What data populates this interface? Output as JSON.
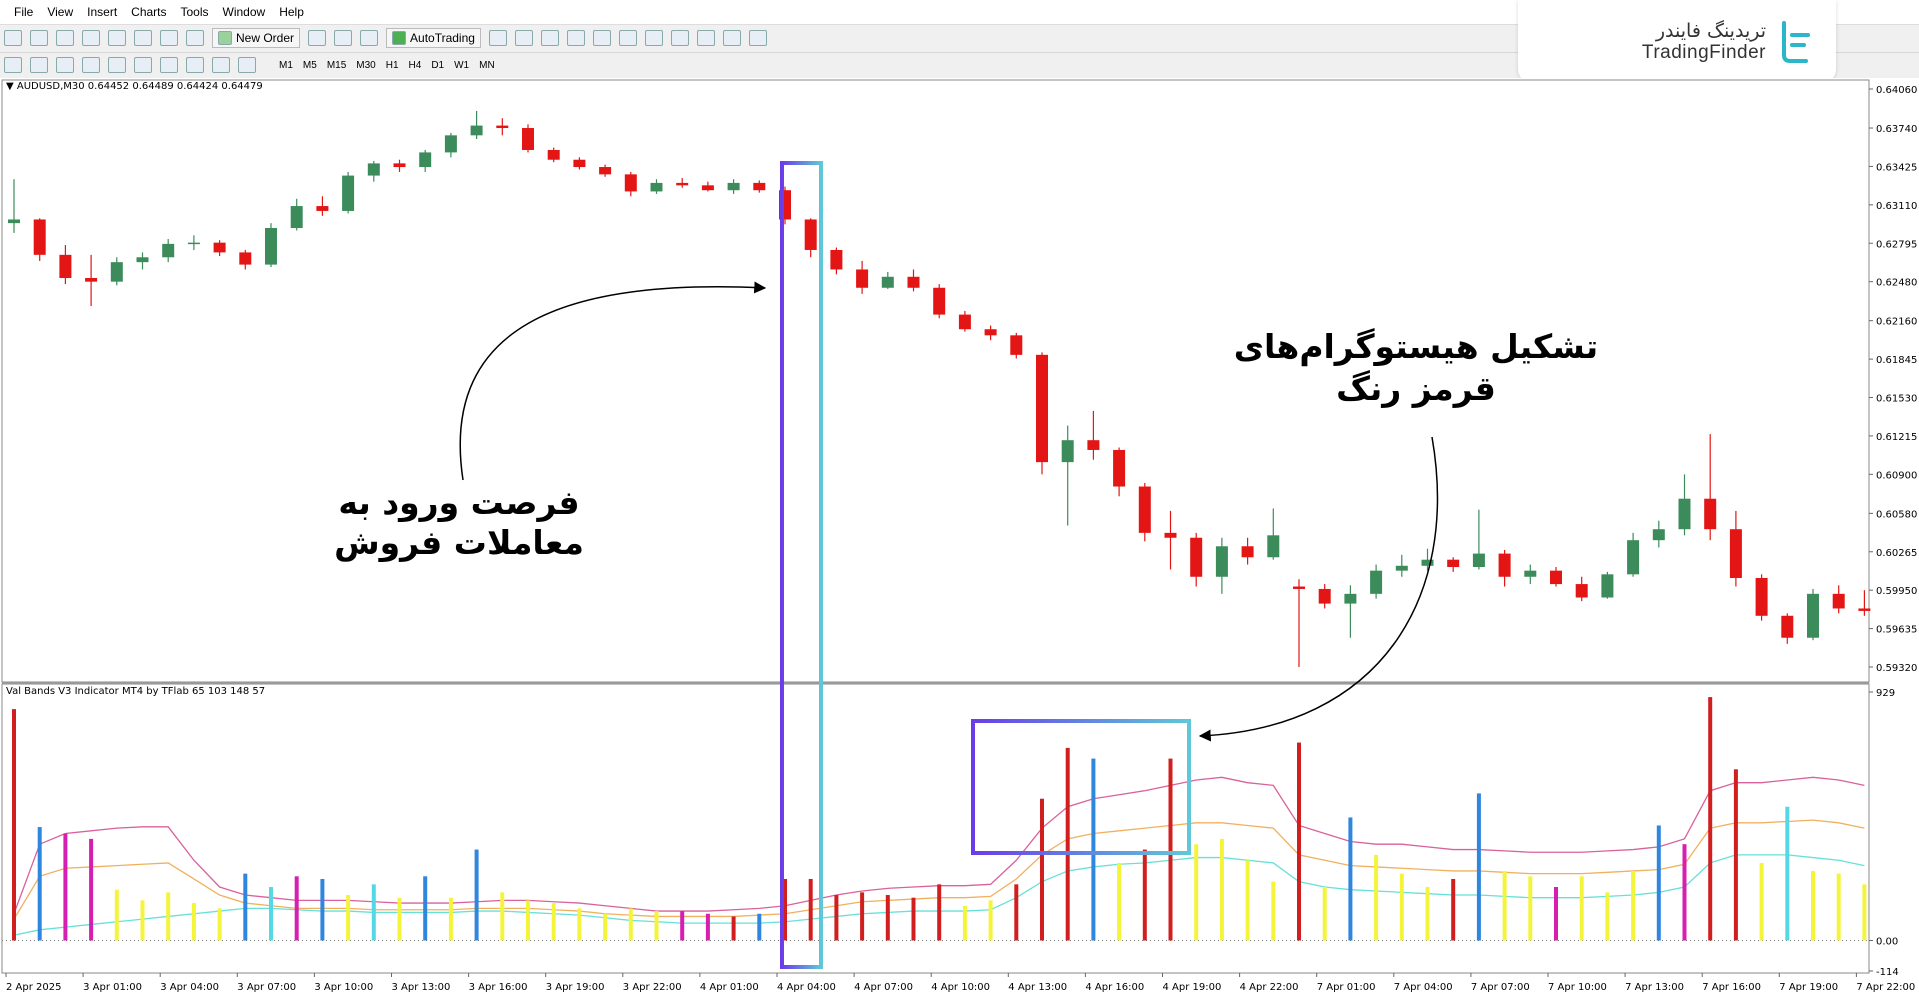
{
  "menu": [
    "File",
    "View",
    "Insert",
    "Charts",
    "Tools",
    "Window",
    "Help"
  ],
  "toolbar": {
    "new_order": "New Order",
    "auto_trading": "AutoTrading",
    "timeframes": [
      "M1",
      "M5",
      "M15",
      "M30",
      "H1",
      "H4",
      "D1",
      "W1",
      "MN"
    ]
  },
  "logo": {
    "persian": "تریدینگ فایندر",
    "latin": "TradingFinder"
  },
  "chart": {
    "type": "candlestick",
    "label": "AUDUSD,M30  0.64452 0.64489 0.64424 0.64479",
    "ylim": [
      0.5932,
      0.6406
    ],
    "yticks": [
      {
        "value": 0.6406,
        "label": "0.64060"
      },
      {
        "value": 0.6374,
        "label": "0.63740"
      },
      {
        "value": 0.63425,
        "label": "0.63425"
      },
      {
        "value": 0.6311,
        "label": "0.63110"
      },
      {
        "value": 0.62795,
        "label": "0.62795"
      },
      {
        "value": 0.6248,
        "label": "0.62480"
      },
      {
        "value": 0.6216,
        "label": "0.62160"
      },
      {
        "value": 0.61845,
        "label": "0.61845"
      },
      {
        "value": 0.6153,
        "label": "0.61530"
      },
      {
        "value": 0.61215,
        "label": "0.61215"
      },
      {
        "value": 0.609,
        "label": "0.60900"
      },
      {
        "value": 0.6058,
        "label": "0.60580"
      },
      {
        "value": 0.60265,
        "label": "0.60265"
      },
      {
        "value": 0.5995,
        "label": "0.59950"
      },
      {
        "value": 0.59635,
        "label": "0.59635"
      },
      {
        "value": 0.5932,
        "label": "0.59320"
      }
    ],
    "up_color": "#3b8c5a",
    "down_color": "#e31515",
    "candles": [
      [
        0.6296,
        0.6332,
        0.6288,
        0.6299
      ],
      [
        0.6299,
        0.63,
        0.6265,
        0.627
      ],
      [
        0.627,
        0.6278,
        0.6246,
        0.6251
      ],
      [
        0.6251,
        0.627,
        0.6228,
        0.6248
      ],
      [
        0.6248,
        0.6268,
        0.6245,
        0.6264
      ],
      [
        0.6264,
        0.6272,
        0.6258,
        0.6268
      ],
      [
        0.6268,
        0.6283,
        0.6264,
        0.6279
      ],
      [
        0.6279,
        0.6286,
        0.6274,
        0.628
      ],
      [
        0.628,
        0.6282,
        0.6269,
        0.6272
      ],
      [
        0.6272,
        0.6274,
        0.6258,
        0.6262
      ],
      [
        0.6262,
        0.6296,
        0.626,
        0.6292
      ],
      [
        0.6292,
        0.6316,
        0.629,
        0.631
      ],
      [
        0.631,
        0.6318,
        0.6302,
        0.6306
      ],
      [
        0.6306,
        0.6338,
        0.6304,
        0.6335
      ],
      [
        0.6335,
        0.6347,
        0.633,
        0.6345
      ],
      [
        0.6345,
        0.6348,
        0.6338,
        0.6342
      ],
      [
        0.6342,
        0.6356,
        0.6338,
        0.6354
      ],
      [
        0.6354,
        0.637,
        0.635,
        0.6368
      ],
      [
        0.6368,
        0.6388,
        0.6365,
        0.6376
      ],
      [
        0.6376,
        0.6382,
        0.6368,
        0.6374
      ],
      [
        0.6374,
        0.6377,
        0.6354,
        0.6356
      ],
      [
        0.6356,
        0.6358,
        0.6346,
        0.6348
      ],
      [
        0.6348,
        0.635,
        0.634,
        0.6342
      ],
      [
        0.6342,
        0.6344,
        0.6334,
        0.6336
      ],
      [
        0.6336,
        0.6338,
        0.6318,
        0.6322
      ],
      [
        0.6322,
        0.6332,
        0.632,
        0.6329
      ],
      [
        0.6329,
        0.6333,
        0.6325,
        0.6327
      ],
      [
        0.6327,
        0.633,
        0.6322,
        0.6323
      ],
      [
        0.6323,
        0.6332,
        0.632,
        0.6329
      ],
      [
        0.6329,
        0.6331,
        0.6321,
        0.6323
      ],
      [
        0.6323,
        0.6326,
        0.6295,
        0.6299
      ],
      [
        0.6299,
        0.63,
        0.6268,
        0.6274
      ],
      [
        0.6274,
        0.6276,
        0.6254,
        0.6258
      ],
      [
        0.6258,
        0.6265,
        0.6238,
        0.6243
      ],
      [
        0.6243,
        0.6256,
        0.6242,
        0.6252
      ],
      [
        0.6252,
        0.6258,
        0.624,
        0.6243
      ],
      [
        0.6243,
        0.6246,
        0.6218,
        0.6221
      ],
      [
        0.6221,
        0.6224,
        0.6207,
        0.6209
      ],
      [
        0.6209,
        0.6212,
        0.62,
        0.6204
      ],
      [
        0.6204,
        0.6206,
        0.6185,
        0.6188
      ],
      [
        0.6188,
        0.619,
        0.609,
        0.61
      ],
      [
        0.61,
        0.613,
        0.6048,
        0.6118
      ],
      [
        0.6118,
        0.6142,
        0.6102,
        0.611
      ],
      [
        0.611,
        0.6112,
        0.6072,
        0.608
      ],
      [
        0.608,
        0.6083,
        0.6035,
        0.6042
      ],
      [
        0.6042,
        0.606,
        0.6012,
        0.6038
      ],
      [
        0.6038,
        0.6042,
        0.5998,
        0.6006
      ],
      [
        0.6006,
        0.6038,
        0.5992,
        0.6031
      ],
      [
        0.6031,
        0.6038,
        0.6016,
        0.6022
      ],
      [
        0.6022,
        0.6062,
        0.602,
        0.604
      ],
      [
        0.5998,
        0.6004,
        0.5932,
        0.5996
      ],
      [
        0.5996,
        0.6,
        0.598,
        0.5984
      ],
      [
        0.5984,
        0.5999,
        0.5956,
        0.5992
      ],
      [
        0.5992,
        0.6016,
        0.5988,
        0.6011
      ],
      [
        0.6011,
        0.6024,
        0.6006,
        0.6015
      ],
      [
        0.6015,
        0.6029,
        0.6011,
        0.602
      ],
      [
        0.602,
        0.6022,
        0.601,
        0.6014
      ],
      [
        0.6014,
        0.6061,
        0.6012,
        0.6025
      ],
      [
        0.6025,
        0.6028,
        0.5998,
        0.6006
      ],
      [
        0.6006,
        0.6016,
        0.6,
        0.6011
      ],
      [
        0.6011,
        0.6014,
        0.5998,
        0.6
      ],
      [
        0.6,
        0.6006,
        0.5986,
        0.5989
      ],
      [
        0.5989,
        0.601,
        0.5988,
        0.6008
      ],
      [
        0.6008,
        0.6042,
        0.6006,
        0.6036
      ],
      [
        0.6036,
        0.6052,
        0.603,
        0.6045
      ],
      [
        0.6045,
        0.609,
        0.604,
        0.607
      ],
      [
        0.607,
        0.6123,
        0.6036,
        0.6045
      ],
      [
        0.6045,
        0.606,
        0.5998,
        0.6005
      ],
      [
        0.6005,
        0.6008,
        0.597,
        0.5974
      ],
      [
        0.5974,
        0.5976,
        0.5951,
        0.5956
      ],
      [
        0.5956,
        0.5996,
        0.5954,
        0.5992
      ],
      [
        0.5992,
        0.5999,
        0.5976,
        0.598
      ],
      [
        0.598,
        0.5995,
        0.5974,
        0.5978
      ]
    ],
    "x_labels": [
      "2 Apr 2025",
      "3 Apr 01:00",
      "3 Apr 04:00",
      "3 Apr 07:00",
      "3 Apr 10:00",
      "3 Apr 13:00",
      "3 Apr 16:00",
      "3 Apr 19:00",
      "3 Apr 22:00",
      "4 Apr 01:00",
      "4 Apr 04:00",
      "4 Apr 07:00",
      "4 Apr 10:00",
      "4 Apr 13:00",
      "4 Apr 16:00",
      "4 Apr 19:00",
      "4 Apr 22:00",
      "7 Apr 01:00",
      "7 Apr 04:00",
      "7 Apr 07:00",
      "7 Apr 10:00",
      "7 Apr 13:00",
      "7 Apr 16:00",
      "7 Apr 19:00",
      "7 Apr 22:00"
    ]
  },
  "indicator": {
    "type": "histogram",
    "label": "Val Bands V3 Indicator MT4 by TFlab 65 103 148 57",
    "ylim": [
      -114,
      929
    ],
    "yticks": [
      929,
      {
        "value": 0,
        "label": "0.00"
      },
      -114
    ],
    "values": [
      865,
      424,
      400,
      380,
      190,
      150,
      180,
      140,
      120,
      250,
      200,
      240,
      230,
      170,
      210,
      160,
      240,
      160,
      340,
      180,
      150,
      140,
      120,
      100,
      120,
      110,
      110,
      100,
      90,
      100,
      230,
      230,
      170,
      180,
      170,
      160,
      210,
      130,
      150,
      210,
      530,
      720,
      680,
      290,
      340,
      680,
      360,
      380,
      300,
      220,
      740,
      200,
      460,
      320,
      250,
      200,
      230,
      550,
      260,
      240,
      200,
      240,
      180,
      260,
      430,
      360,
      910,
      640,
      290,
      500,
      260,
      250,
      210
    ],
    "colors": [
      "#d11f1f",
      "#2e86de",
      "#d61fb0",
      "#d61fb0",
      "#f4f43a",
      "#f4f43a",
      "#f4f43a",
      "#f4f43a",
      "#f4f43a",
      "#2e86de",
      "#55d8e6",
      "#d61fb0",
      "#2e86de",
      "#f4f43a",
      "#55d8e6",
      "#f4f43a",
      "#2e86de",
      "#f4f43a",
      "#2e86de",
      "#f4f43a",
      "#f4f43a",
      "#f4f43a",
      "#f4f43a",
      "#f4f43a",
      "#f4f43a",
      "#f4f43a",
      "#d61fb0",
      "#d61fb0",
      "#d11f1f",
      "#2e86de",
      "#d11f1f",
      "#d11f1f",
      "#d11f1f",
      "#d11f1f",
      "#d11f1f",
      "#d11f1f",
      "#d11f1f",
      "#f4f43a",
      "#f4f43a",
      "#d11f1f",
      "#d11f1f",
      "#d11f1f",
      "#2e86de",
      "#f4f43a",
      "#d11f1f",
      "#d11f1f",
      "#f4f43a",
      "#f4f43a",
      "#f4f43a",
      "#f4f43a",
      "#d11f1f",
      "#f4f43a",
      "#2e86de",
      "#f4f43a",
      "#f4f43a",
      "#f4f43a",
      "#d11f1f",
      "#2e86de",
      "#f4f43a",
      "#f4f43a",
      "#d61fb0",
      "#f4f43a",
      "#f4f43a",
      "#f4f43a",
      "#2e86de",
      "#d61fb0",
      "#d11f1f",
      "#d11f1f",
      "#f4f43a",
      "#55d8e6",
      "#f4f43a",
      "#f4f43a",
      "#f4f43a"
    ],
    "bands": [
      {
        "color": "#d9619c",
        "values": [
          100,
          360,
          400,
          410,
          420,
          425,
          425,
          300,
          200,
          170,
          160,
          150,
          150,
          150,
          145,
          140,
          140,
          140,
          145,
          150,
          150,
          145,
          140,
          130,
          120,
          110,
          110,
          110,
          115,
          120,
          130,
          150,
          170,
          185,
          195,
          200,
          205,
          205,
          210,
          300,
          420,
          500,
          530,
          545,
          560,
          580,
          600,
          610,
          590,
          580,
          430,
          400,
          370,
          360,
          360,
          350,
          340,
          340,
          335,
          330,
          330,
          330,
          335,
          340,
          350,
          380,
          560,
          590,
          590,
          600,
          610,
          600,
          580
        ]
      },
      {
        "color": "#f0b060",
        "values": [
          80,
          240,
          270,
          275,
          280,
          285,
          290,
          230,
          170,
          140,
          130,
          120,
          120,
          120,
          115,
          115,
          115,
          115,
          120,
          120,
          120,
          115,
          110,
          100,
          95,
          90,
          90,
          90,
          90,
          95,
          100,
          115,
          130,
          145,
          150,
          155,
          160,
          160,
          165,
          230,
          320,
          380,
          400,
          410,
          420,
          430,
          440,
          440,
          430,
          420,
          320,
          300,
          280,
          275,
          270,
          265,
          260,
          260,
          255,
          250,
          250,
          250,
          255,
          260,
          265,
          285,
          420,
          440,
          440,
          445,
          450,
          440,
          420
        ]
      },
      {
        "color": "#66e0d8",
        "values": [
          20,
          40,
          50,
          60,
          70,
          80,
          90,
          100,
          110,
          120,
          120,
          115,
          110,
          110,
          105,
          105,
          105,
          105,
          110,
          110,
          105,
          100,
          95,
          85,
          75,
          70,
          65,
          65,
          65,
          65,
          70,
          80,
          90,
          100,
          105,
          110,
          110,
          110,
          115,
          160,
          220,
          260,
          275,
          285,
          290,
          300,
          310,
          310,
          300,
          290,
          220,
          200,
          190,
          185,
          180,
          175,
          170,
          170,
          165,
          160,
          160,
          160,
          165,
          170,
          180,
          200,
          290,
          320,
          320,
          320,
          310,
          300,
          280
        ]
      }
    ]
  },
  "annotations": {
    "entry": [
      "فرصت ورود به",
      "معاملات فروش"
    ],
    "histogram": [
      "تشکیل هیستوگرام‌های",
      "قرمز رنگ"
    ]
  }
}
